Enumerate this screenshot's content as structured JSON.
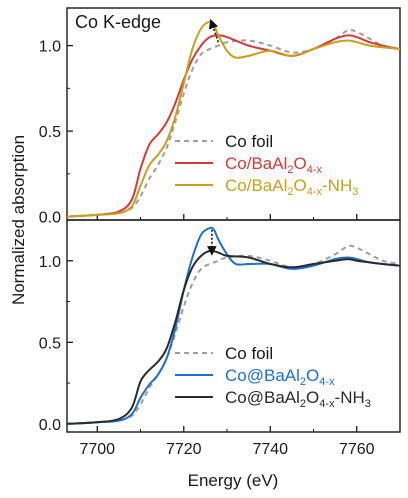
{
  "chart_data": [
    {
      "type": "line",
      "title": "Co K-edge",
      "xlabel": "Energy (eV)",
      "ylabel": "Normalized absorption",
      "xlim": [
        7693,
        7770
      ],
      "ylim": [
        -0.02,
        1.22
      ],
      "yticks": [
        0.0,
        0.5,
        1.0
      ],
      "ytick_labels": [
        "0.0",
        "0.5",
        "1.0"
      ],
      "legend_position": "bottom-right",
      "series": [
        {
          "name": "Co foil",
          "style": "dashed",
          "color": "#9e9e9e",
          "x": [
            7693,
            7700,
            7705,
            7708,
            7710,
            7712,
            7714,
            7716,
            7718,
            7720,
            7722,
            7724,
            7726,
            7728,
            7730,
            7735,
            7740,
            7745,
            7750,
            7755,
            7758,
            7760,
            7763,
            7766,
            7770
          ],
          "y": [
            0.0,
            0.01,
            0.02,
            0.05,
            0.12,
            0.22,
            0.3,
            0.4,
            0.55,
            0.72,
            0.86,
            0.95,
            0.98,
            1.0,
            1.02,
            1.03,
            1.0,
            0.96,
            0.98,
            1.04,
            1.09,
            1.08,
            1.04,
            1.0,
            0.98
          ]
        },
        {
          "name": "Co/BaAl₂O₄₋ₓ",
          "label_main": "Co/BaAl",
          "sub1": "2",
          "label_mid": "O",
          "sub2": "4-x",
          "label_end": "",
          "color": "#d63a3a",
          "x": [
            7693,
            7700,
            7705,
            7708,
            7710,
            7712,
            7714,
            7716,
            7718,
            7720,
            7722,
            7724,
            7726,
            7728,
            7730,
            7735,
            7740,
            7745,
            7750,
            7755,
            7758,
            7760,
            7763,
            7766,
            7770
          ],
          "y": [
            0.0,
            0.01,
            0.03,
            0.1,
            0.28,
            0.42,
            0.48,
            0.55,
            0.66,
            0.8,
            0.92,
            1.0,
            1.05,
            1.06,
            1.05,
            1.0,
            0.97,
            0.94,
            0.98,
            1.04,
            1.06,
            1.05,
            1.02,
            1.0,
            0.98
          ]
        },
        {
          "name": "Co/BaAl₂O₄₋ₓ-NH₃",
          "label_main": "Co/BaAl",
          "sub1": "2",
          "label_mid": "O",
          "sub2": "4-x",
          "label_end": "-NH",
          "sub3": "3",
          "color": "#c8a01c",
          "x": [
            7693,
            7700,
            7705,
            7708,
            7710,
            7712,
            7714,
            7716,
            7718,
            7720,
            7722,
            7724,
            7726,
            7727,
            7728,
            7730,
            7732,
            7735,
            7740,
            7745,
            7750,
            7755,
            7758,
            7760,
            7763,
            7766,
            7770
          ],
          "y": [
            0.0,
            0.01,
            0.02,
            0.06,
            0.18,
            0.3,
            0.36,
            0.44,
            0.58,
            0.78,
            0.98,
            1.1,
            1.14,
            1.12,
            1.06,
            0.97,
            0.93,
            0.94,
            0.97,
            0.94,
            0.98,
            1.02,
            1.03,
            1.02,
            1.0,
            0.99,
            0.98
          ]
        }
      ],
      "annotations": [
        {
          "type": "arrow",
          "from": [
            7728,
            1.02
          ],
          "to": [
            7726.5,
            1.13
          ],
          "style": "dotted"
        }
      ]
    },
    {
      "type": "line",
      "xlabel": "Energy (eV)",
      "ylabel": "Normalized absorption",
      "xlim": [
        7693,
        7770
      ],
      "ylim": [
        -0.05,
        1.25
      ],
      "xticks": [
        7700,
        7720,
        7740,
        7760
      ],
      "xtick_labels": [
        "7700",
        "7720",
        "7740",
        "7760"
      ],
      "yticks": [
        0.0,
        0.5,
        1.0
      ],
      "ytick_labels": [
        "0.0",
        "0.5",
        "1.0"
      ],
      "legend_position": "bottom-right",
      "series": [
        {
          "name": "Co foil",
          "style": "dashed",
          "color": "#9e9e9e",
          "x": [
            7693,
            7700,
            7705,
            7708,
            7710,
            7712,
            7714,
            7716,
            7718,
            7720,
            7722,
            7724,
            7726,
            7728,
            7730,
            7735,
            7740,
            7745,
            7750,
            7755,
            7758,
            7760,
            7763,
            7766,
            7770
          ],
          "y": [
            0.0,
            0.01,
            0.02,
            0.05,
            0.12,
            0.22,
            0.3,
            0.4,
            0.55,
            0.72,
            0.86,
            0.95,
            0.98,
            1.0,
            1.02,
            1.03,
            1.0,
            0.96,
            0.98,
            1.04,
            1.09,
            1.08,
            1.04,
            1.0,
            0.98
          ]
        },
        {
          "name": "Co@BaAl₂O₄₋ₓ",
          "label_main": "Co@BaAl",
          "sub1": "2",
          "label_mid": "O",
          "sub2": "4-x",
          "label_end": "",
          "color": "#1f6fd1",
          "x": [
            7693,
            7700,
            7705,
            7708,
            7710,
            7712,
            7714,
            7716,
            7718,
            7720,
            7722,
            7724,
            7726,
            7727,
            7728,
            7730,
            7732,
            7735,
            7740,
            7745,
            7750,
            7755,
            7758,
            7760,
            7763,
            7766,
            7770
          ],
          "y": [
            0.0,
            0.01,
            0.02,
            0.06,
            0.16,
            0.24,
            0.3,
            0.4,
            0.58,
            0.82,
            1.02,
            1.16,
            1.2,
            1.19,
            1.13,
            1.04,
            0.98,
            0.98,
            0.98,
            0.95,
            0.97,
            1.01,
            1.02,
            1.01,
            0.99,
            0.98,
            0.97
          ]
        },
        {
          "name": "Co@BaAl₂O₄₋ₓ-NH₃",
          "label_main": "Co@BaAl",
          "sub1": "2",
          "label_mid": "O",
          "sub2": "4-x",
          "label_end": "-NH",
          "sub3": "3",
          "color": "#2b2b2b",
          "x": [
            7693,
            7700,
            7705,
            7708,
            7710,
            7712,
            7714,
            7716,
            7718,
            7720,
            7722,
            7724,
            7726,
            7728,
            7730,
            7735,
            7740,
            7745,
            7750,
            7755,
            7758,
            7760,
            7763,
            7766,
            7770
          ],
          "y": [
            0.0,
            0.01,
            0.03,
            0.1,
            0.26,
            0.33,
            0.38,
            0.46,
            0.62,
            0.82,
            0.96,
            1.03,
            1.06,
            1.05,
            1.03,
            1.02,
            0.98,
            0.96,
            0.98,
            1.0,
            1.01,
            1.0,
            0.99,
            0.98,
            0.97
          ]
        }
      ],
      "annotations": [
        {
          "type": "arrow",
          "from": [
            7726.5,
            1.19
          ],
          "to": [
            7726.5,
            1.06
          ],
          "style": "dotted"
        }
      ]
    }
  ]
}
